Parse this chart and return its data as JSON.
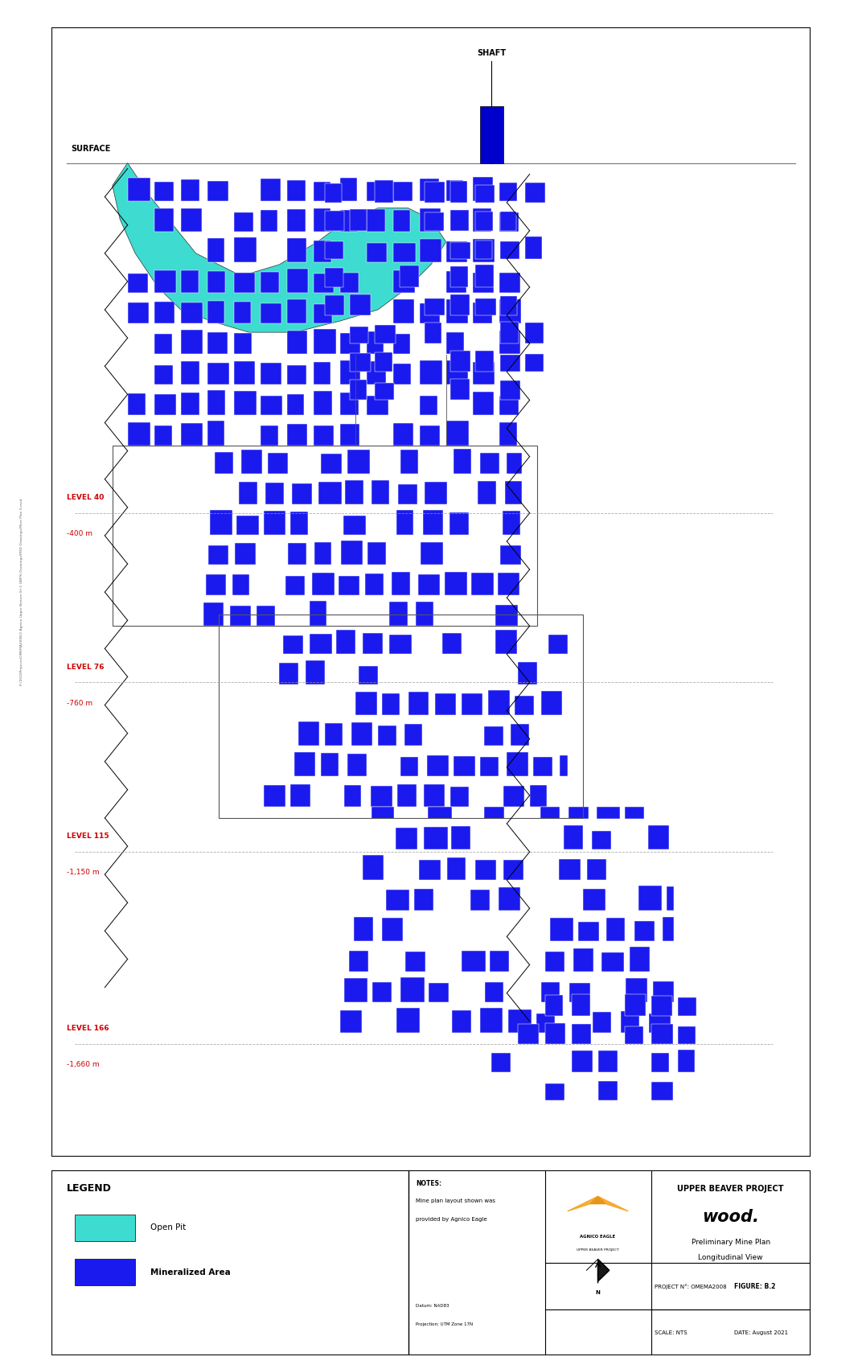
{
  "title": "UPPER BEAVER PROJECT",
  "subtitle1": "Preliminary Mine Plan",
  "subtitle2": "Longitudinal View",
  "figure_num": "B.2",
  "project_num": "OMEMA2008",
  "scale": "NTS",
  "date": "August 2021",
  "shaft_label": "SHAFT",
  "surface_label": "SURFACE",
  "levels": [
    {
      "name": "LEVEL 40",
      "depth": "-400 m",
      "y_data": 57
    },
    {
      "name": "LEVEL 76",
      "depth": "-760 m",
      "y_data": 42
    },
    {
      "name": "LEVEL 115",
      "depth": "-1,150 m",
      "y_data": 27
    },
    {
      "name": "LEVEL 166",
      "depth": "-1,660 m",
      "y_data": 10
    }
  ],
  "open_pit_color": "#3DDBD0",
  "mineralized_color": "#1a1aee",
  "background_color": "#ffffff",
  "level_line_color": "#999999",
  "level_text_color": "#cc0000",
  "legend_title": "LEGEND",
  "legend_items": [
    {
      "label": "Open Pit",
      "color": "#3DDBD0"
    },
    {
      "label": "Mineralized Area",
      "color": "#1a1aee"
    }
  ],
  "notes_text": "NOTES:\nMine plan layout shown was\nprovided by Agnico Eagle",
  "filepath_text": "P:/2020Projects/OMEMA2008/2 Agnico Upper Beaver 8+1 GBP/6 Drawings/MXD Drawings/Mine Plan S.mxd",
  "wood_text": "wood.",
  "agnico_text": "AGNICO EAGLE",
  "agnico_sub": "UPPER BEAVER PROJECT",
  "datum_text": "Datum: NAD83\nProjection: UTM Zone 17N"
}
